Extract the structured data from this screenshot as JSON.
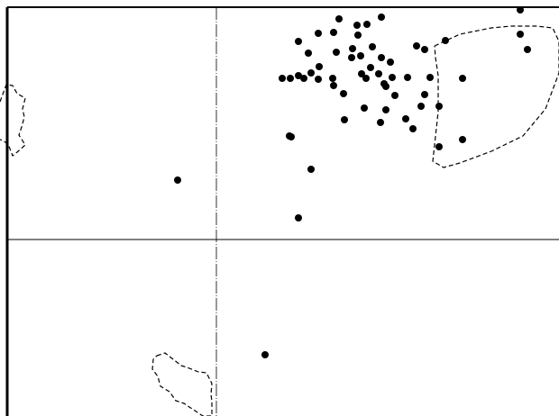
{
  "chart_data": {
    "type": "scatter",
    "title": "",
    "xlabel": "",
    "ylabel": "",
    "grid": false,
    "legend": "none",
    "xlim": [
      -2.4,
      3.8
    ],
    "ylim": [
      -1.96,
      2.66
    ],
    "axes_lines": {
      "x": 0,
      "y": 0
    },
    "colors": {
      "points": "#000000",
      "axes": "#000000",
      "frame": "#000000",
      "region_outline": "#000000"
    },
    "points": [
      [
        1.36,
        2.45
      ],
      [
        1.83,
        2.47
      ],
      [
        3.37,
        2.55
      ],
      [
        1.56,
        2.38
      ],
      [
        1.67,
        2.39
      ],
      [
        1.3,
        2.3
      ],
      [
        1.57,
        2.27
      ],
      [
        1.13,
        2.29
      ],
      [
        2.54,
        2.21
      ],
      [
        3.37,
        2.28
      ],
      [
        0.91,
        2.2
      ],
      [
        1.51,
        2.12
      ],
      [
        1.73,
        2.14
      ],
      [
        1.02,
        2.07
      ],
      [
        1.5,
        2.02
      ],
      [
        1.6,
        2.04
      ],
      [
        2.31,
        2.11
      ],
      [
        2.22,
        2.15
      ],
      [
        3.45,
        2.11
      ],
      [
        1.83,
        2.02
      ],
      [
        1.33,
        2.08
      ],
      [
        1.14,
        1.92
      ],
      [
        1.93,
        1.97
      ],
      [
        1.71,
        1.91
      ],
      [
        1.05,
        1.85
      ],
      [
        1.13,
        1.78
      ],
      [
        0.97,
        1.79
      ],
      [
        0.82,
        1.79
      ],
      [
        0.73,
        1.79
      ],
      [
        0.91,
        1.82
      ],
      [
        1.29,
        1.79
      ],
      [
        1.61,
        1.84
      ],
      [
        1.8,
        1.84
      ],
      [
        1.95,
        1.8
      ],
      [
        1.66,
        1.79
      ],
      [
        2.12,
        1.8
      ],
      [
        2.37,
        1.8
      ],
      [
        2.73,
        1.79
      ],
      [
        1.88,
        1.7
      ],
      [
        1.86,
        1.73
      ],
      [
        1.3,
        1.71
      ],
      [
        1.41,
        1.62
      ],
      [
        1.98,
        1.6
      ],
      [
        2.31,
        1.61
      ],
      [
        1.88,
        1.44
      ],
      [
        1.64,
        1.46
      ],
      [
        2.27,
        1.48
      ],
      [
        2.47,
        1.48
      ],
      [
        1.42,
        1.33
      ],
      [
        2.1,
        1.34
      ],
      [
        1.82,
        1.3
      ],
      [
        2.18,
        1.23
      ],
      [
        2.73,
        1.11
      ],
      [
        0.81,
        1.15
      ],
      [
        2.47,
        1.03
      ],
      [
        0.83,
        1.14
      ],
      [
        1.05,
        0.78
      ],
      [
        0.91,
        0.24
      ],
      [
        -0.43,
        0.66
      ],
      [
        0.54,
        -1.28
      ]
    ],
    "region_outlines": [
      [
        [
          2.42,
          2.15
        ],
        [
          2.7,
          2.28
        ],
        [
          3.05,
          2.35
        ],
        [
          3.27,
          2.37
        ],
        [
          3.55,
          2.37
        ],
        [
          3.73,
          2.35
        ],
        [
          3.8,
          2.2
        ],
        [
          3.8,
          1.85
        ],
        [
          3.65,
          1.45
        ],
        [
          3.4,
          1.15
        ],
        [
          3.05,
          0.98
        ],
        [
          2.7,
          0.85
        ],
        [
          2.52,
          0.8
        ],
        [
          2.4,
          0.87
        ],
        [
          2.42,
          1.05
        ],
        [
          2.46,
          1.42
        ],
        [
          2.46,
          1.82
        ],
        [
          2.43,
          2.02
        ],
        [
          2.42,
          2.15
        ]
      ],
      [
        [
          -2.4,
          1.53
        ],
        [
          -2.33,
          1.72
        ],
        [
          -2.26,
          1.71
        ],
        [
          -2.21,
          1.62
        ],
        [
          -2.12,
          1.57
        ],
        [
          -2.15,
          1.45
        ],
        [
          -2.13,
          1.36
        ],
        [
          -2.16,
          1.25
        ],
        [
          -2.19,
          1.16
        ],
        [
          -2.12,
          1.05
        ],
        [
          -2.21,
          0.97
        ],
        [
          -2.26,
          0.93
        ],
        [
          -2.31,
          1.06
        ],
        [
          -2.37,
          1.1
        ],
        [
          -2.4,
          1.11
        ]
      ],
      [
        [
          -0.66,
          -1.29
        ],
        [
          -0.57,
          -1.26
        ],
        [
          -0.48,
          -1.33
        ],
        [
          -0.39,
          -1.4
        ],
        [
          -0.3,
          -1.43
        ],
        [
          -0.2,
          -1.47
        ],
        [
          -0.11,
          -1.48
        ],
        [
          -0.05,
          -1.6
        ],
        [
          -0.06,
          -1.72
        ],
        [
          -0.05,
          -1.8
        ],
        [
          -0.05,
          -1.96
        ],
        [
          -0.15,
          -1.96
        ],
        [
          -0.27,
          -1.88
        ],
        [
          -0.36,
          -1.82
        ],
        [
          -0.45,
          -1.79
        ],
        [
          -0.52,
          -1.69
        ],
        [
          -0.62,
          -1.63
        ],
        [
          -0.65,
          -1.52
        ],
        [
          -0.71,
          -1.44
        ],
        [
          -0.7,
          -1.33
        ],
        [
          -0.66,
          -1.29
        ]
      ]
    ]
  }
}
